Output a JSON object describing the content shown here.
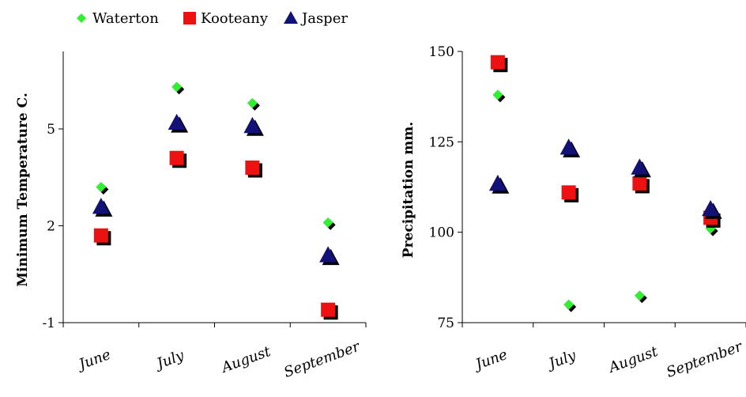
{
  "legend": [
    {
      "name": "Waterton",
      "marker": "diamond",
      "color": "#33ee33"
    },
    {
      "name": "Kooteany",
      "marker": "square",
      "color": "#ee1111"
    },
    {
      "name": "Jasper",
      "marker": "triangle",
      "color": "#111177"
    }
  ],
  "chart_data": [
    {
      "type": "scatter",
      "categories": [
        "June",
        "July",
        "August",
        "September"
      ],
      "ylabel": "Minimum Temperature C.",
      "ylim": [
        -1,
        7.4
      ],
      "yticks": [
        -1,
        2,
        5
      ],
      "grid": false,
      "series": [
        {
          "name": "Waterton",
          "marker": "diamond",
          "color": "#33ee33",
          "values": [
            3.2,
            6.3,
            5.8,
            2.1
          ]
        },
        {
          "name": "Kooteany",
          "marker": "square",
          "color": "#ee1111",
          "values": [
            1.7,
            4.1,
            3.8,
            -0.6
          ]
        },
        {
          "name": "Jasper",
          "marker": "triangle",
          "color": "#111177",
          "values": [
            2.6,
            5.2,
            5.1,
            1.1
          ]
        }
      ]
    },
    {
      "type": "scatter",
      "categories": [
        "June",
        "July",
        "August",
        "September"
      ],
      "ylabel": "Precipitation mm.",
      "ylim": [
        75,
        150
      ],
      "yticks": [
        75,
        100,
        125,
        150
      ],
      "grid": false,
      "series": [
        {
          "name": "Waterton",
          "marker": "diamond",
          "color": "#33ee33",
          "values": [
            138,
            80,
            82.5,
            101
          ]
        },
        {
          "name": "Kooteany",
          "marker": "square",
          "color": "#ee1111",
          "values": [
            147,
            111,
            113.5,
            104
          ]
        },
        {
          "name": "Jasper",
          "marker": "triangle",
          "color": "#111177",
          "values": [
            113.5,
            123.5,
            118,
            106.5
          ]
        }
      ]
    }
  ]
}
